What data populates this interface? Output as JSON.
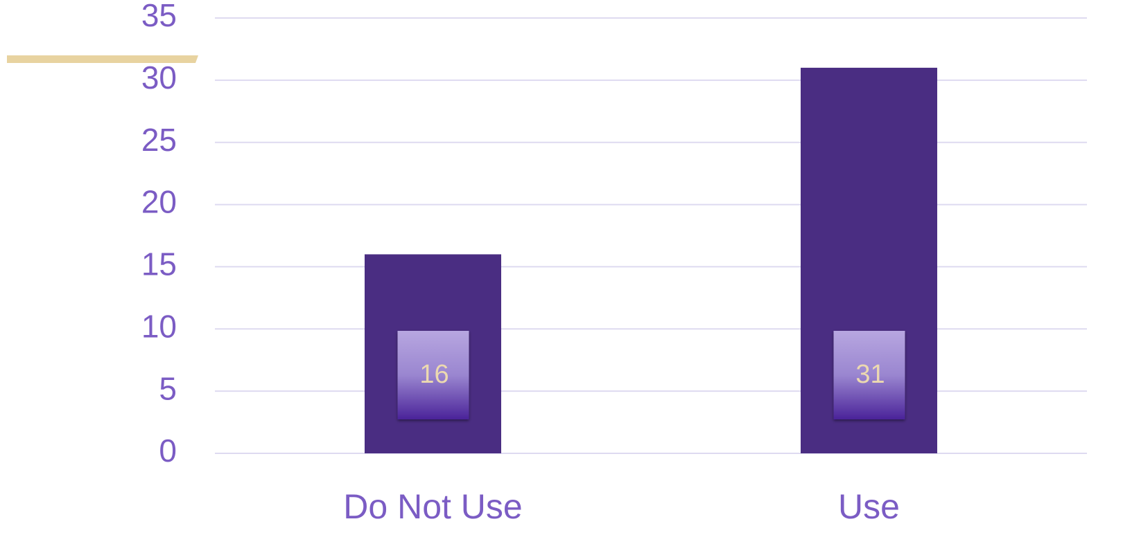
{
  "chart_data": {
    "type": "bar",
    "categories": [
      "Do Not Use",
      "Use"
    ],
    "values": [
      16,
      31
    ],
    "color": "#4a2d82",
    "ylim": [
      0,
      35
    ],
    "yticks": [
      0,
      5,
      10,
      15,
      20,
      25,
      30,
      35
    ],
    "grid": true,
    "data_labels": true
  }
}
